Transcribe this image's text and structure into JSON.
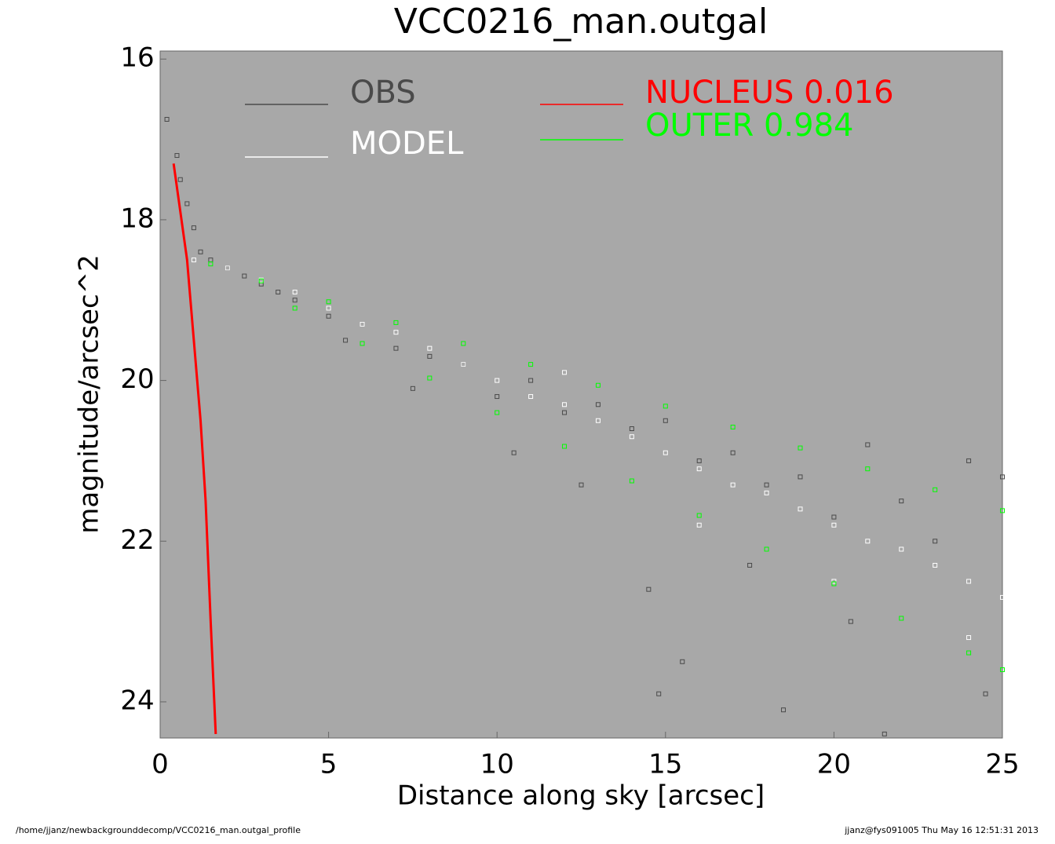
{
  "chart_data": {
    "type": "scatter",
    "title": "VCC0216_man.outgal",
    "x_label": "Distance along sky [arcsec]",
    "y_label": "magnitude/arcsec^2",
    "xlim": [
      0,
      25
    ],
    "ylim": [
      15.9,
      24.45
    ],
    "y_inverted": true,
    "xticks": [
      0,
      5,
      10,
      15,
      20,
      25
    ],
    "yticks": [
      16,
      18,
      20,
      22,
      24
    ],
    "grid": false,
    "background": "#a8a8a8",
    "series": [
      {
        "name": "OBS",
        "color": "#4a4a4a",
        "mode": "points",
        "x": [
          0.2,
          0.5,
          0.6,
          0.8,
          1.0,
          1.2,
          1.5,
          2,
          2.5,
          3,
          3.5,
          4,
          5,
          5.5,
          6,
          7,
          7.5,
          8,
          9,
          10,
          10.5,
          11,
          12,
          12.5,
          13,
          14,
          14.5,
          15,
          15.5,
          16,
          17,
          17.5,
          18,
          19,
          20,
          20.5,
          21,
          22,
          23,
          24,
          24.5,
          25,
          14.8,
          18.5,
          21.5
        ],
        "values": [
          16.75,
          17.2,
          17.5,
          17.8,
          18.1,
          18.4,
          18.5,
          18.6,
          18.7,
          18.8,
          18.9,
          19.0,
          19.2,
          19.5,
          19.3,
          19.6,
          20.1,
          19.7,
          19.8,
          20.2,
          20.9,
          20.0,
          20.4,
          21.3,
          20.3,
          20.6,
          22.6,
          20.5,
          23.5,
          21.0,
          20.9,
          22.3,
          21.3,
          21.2,
          21.7,
          23.0,
          20.8,
          21.5,
          22.0,
          21.0,
          23.9,
          21.2,
          23.9,
          24.1,
          24.4
        ]
      },
      {
        "name": "MODEL",
        "color": "#ffffff",
        "mode": "points",
        "x": [
          1,
          2,
          3,
          4,
          5,
          6,
          7,
          8,
          9,
          10,
          11,
          12,
          13,
          14,
          15,
          16,
          17,
          18,
          19,
          20,
          21,
          22,
          23,
          24,
          25,
          12,
          16,
          20,
          24
        ],
        "values": [
          18.5,
          18.6,
          18.75,
          18.9,
          19.1,
          19.3,
          19.4,
          19.6,
          19.8,
          20.0,
          20.2,
          20.3,
          20.5,
          20.7,
          20.9,
          21.1,
          21.3,
          21.4,
          21.6,
          21.8,
          22.0,
          22.1,
          22.3,
          22.5,
          22.7,
          19.9,
          21.8,
          22.5,
          23.2
        ]
      },
      {
        "name": "NUCLEUS  0.016",
        "color": "#ff0000",
        "mode": "line",
        "x": [
          0.4,
          0.6,
          0.8,
          1.0,
          1.2,
          1.35,
          1.5,
          1.65
        ],
        "values": [
          17.3,
          17.9,
          18.5,
          19.5,
          20.5,
          21.5,
          23.0,
          24.4
        ]
      },
      {
        "name": "OUTER  0.984",
        "color": "#00ff00",
        "mode": "points",
        "x": [
          1.5,
          3,
          5,
          7,
          9,
          11,
          13,
          15,
          17,
          19,
          21,
          23,
          25,
          4,
          6,
          8,
          10,
          12,
          14,
          16,
          18,
          20,
          22,
          24,
          25
        ],
        "values": [
          18.55,
          18.76,
          19.02,
          19.28,
          19.54,
          19.8,
          20.06,
          20.32,
          20.58,
          20.84,
          21.1,
          21.36,
          21.62,
          19.1,
          19.54,
          19.97,
          20.4,
          20.82,
          21.25,
          21.68,
          22.1,
          22.53,
          22.96,
          23.39,
          23.6
        ]
      }
    ],
    "footer_left": "/home/jjanz/newbackgrounddecomp/VCC0216_man.outgal_profile",
    "footer_right": "jjanz@fys091005  Thu May 16 12:51:31 2013"
  }
}
